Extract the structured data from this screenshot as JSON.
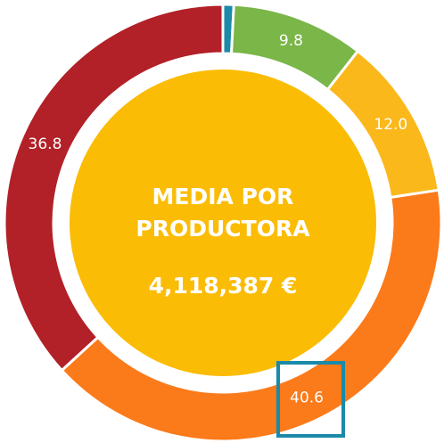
{
  "chart_data": {
    "type": "pie",
    "title": [
      "MEDIA POR",
      "PRODUCTORA"
    ],
    "subtitle": "4,118,387 €",
    "categories": [
      null,
      null,
      null,
      null,
      null
    ],
    "values": [
      0.8,
      9.8,
      12.0,
      40.6,
      36.8
    ],
    "value_labels": [
      null,
      "9.8",
      "12.0",
      "40.6",
      "36.8"
    ],
    "colors": [
      "#1a8aa8",
      "#7ab648",
      "#fbb81b",
      "#fb7a1a",
      "#b22028"
    ],
    "center_color": "#fbbc05"
  }
}
